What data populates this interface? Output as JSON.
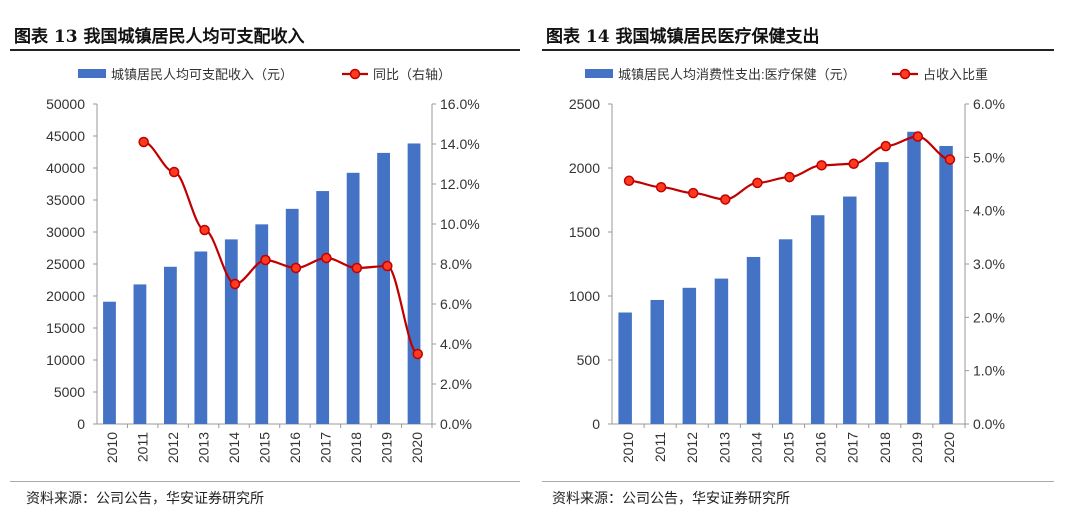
{
  "charts": [
    {
      "title": "图表 13  我国城镇居民人均可支配收入",
      "source": "资料来源：公司公告，华安证券研究所"
    },
    {
      "title": "图表 14  我国城镇居民医疗保健支出",
      "source": "资料来源：公司公告，华安证券研究所"
    }
  ],
  "colors": {
    "bar": "#4472C4",
    "line": "#C00000",
    "marker_fill": "#FF3B1F"
  },
  "chart_data": [
    {
      "type": "bar+line",
      "categories": [
        "2010",
        "2011",
        "2012",
        "2013",
        "2014",
        "2015",
        "2016",
        "2017",
        "2018",
        "2019",
        "2020"
      ],
      "series": [
        {
          "name": "城镇居民人均可支配收入（元）",
          "type": "bar",
          "axis": "left",
          "values": [
            19109,
            21810,
            24565,
            26955,
            28844,
            31195,
            33616,
            36396,
            39251,
            42359,
            43834
          ]
        },
        {
          "name": "同比（右轴）",
          "type": "line",
          "axis": "right",
          "values": [
            null,
            0.141,
            0.126,
            0.097,
            0.07,
            0.082,
            0.078,
            0.083,
            0.078,
            0.079,
            0.035
          ]
        }
      ],
      "ylim_left": [
        0,
        50000
      ],
      "yticks_left": [
        "0",
        "5000",
        "10000",
        "15000",
        "20000",
        "25000",
        "30000",
        "35000",
        "40000",
        "45000",
        "50000"
      ],
      "ylim_right": [
        0,
        0.16
      ],
      "yticks_right": [
        "0.0%",
        "2.0%",
        "4.0%",
        "6.0%",
        "8.0%",
        "10.0%",
        "12.0%",
        "14.0%",
        "16.0%"
      ],
      "legend": "top",
      "grid": false
    },
    {
      "type": "bar+line",
      "categories": [
        "2010",
        "2011",
        "2012",
        "2013",
        "2014",
        "2015",
        "2016",
        "2017",
        "2018",
        "2019",
        "2020"
      ],
      "series": [
        {
          "name": "城镇居民人均消费性支出:医疗保健（元）",
          "type": "bar",
          "axis": "left",
          "values": [
            871,
            969,
            1064,
            1136,
            1305,
            1443,
            1631,
            1777,
            2046,
            2283,
            2172
          ]
        },
        {
          "name": "占收入比重",
          "type": "line",
          "axis": "right",
          "values": [
            0.0456,
            0.0444,
            0.0433,
            0.0421,
            0.0452,
            0.0463,
            0.0485,
            0.0488,
            0.0521,
            0.0539,
            0.0496
          ]
        }
      ],
      "ylim_left": [
        0,
        2500
      ],
      "yticks_left": [
        "0",
        "500",
        "1000",
        "1500",
        "2000",
        "2500"
      ],
      "ylim_right": [
        0,
        0.06
      ],
      "yticks_right": [
        "0.0%",
        "1.0%",
        "2.0%",
        "3.0%",
        "4.0%",
        "5.0%",
        "6.0%"
      ],
      "legend": "top",
      "grid": false
    }
  ]
}
